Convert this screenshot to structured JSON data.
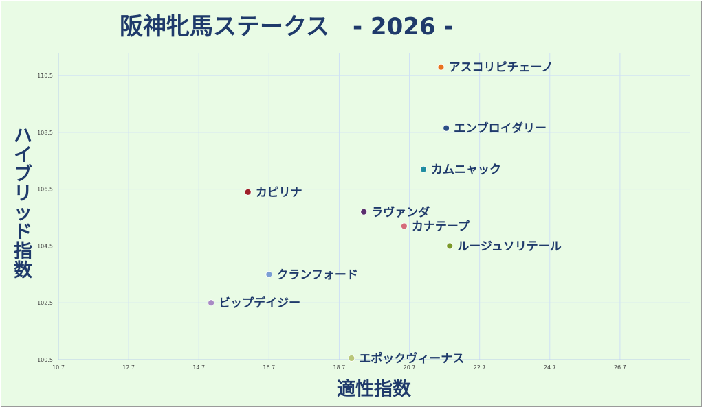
{
  "chart_data": {
    "type": "scatter",
    "title": "阪神牝馬ステークス　- 2026 -",
    "xlabel": "適性指数",
    "ylabel": "ハイブリッド指数",
    "xlim": [
      10.7,
      28.7
    ],
    "ylim": [
      100.5,
      111.3
    ],
    "xticks": [
      "10.7",
      "12.7",
      "14.7",
      "16.7",
      "18.7",
      "20.7",
      "22.7",
      "24.7",
      "26.7"
    ],
    "yticks": [
      "100.5",
      "102.5",
      "104.5",
      "106.5",
      "108.5",
      "110.5"
    ],
    "grid": true,
    "legend": "none",
    "points": [
      {
        "name": "アスコリピチェーノ",
        "x": 21.6,
        "y": 110.8,
        "color": "#e8731e"
      },
      {
        "name": "エンブロイダリー",
        "x": 21.75,
        "y": 108.65,
        "color": "#2b4f86"
      },
      {
        "name": "カムニャック",
        "x": 21.1,
        "y": 107.2,
        "color": "#1f8ea0"
      },
      {
        "name": "カピリナ",
        "x": 16.1,
        "y": 106.4,
        "color": "#9e1f28"
      },
      {
        "name": "ラヴァンダ",
        "x": 19.4,
        "y": 105.7,
        "color": "#5a2f6e"
      },
      {
        "name": "カナテープ",
        "x": 20.55,
        "y": 105.2,
        "color": "#d46b7a"
      },
      {
        "name": "ルージュソリテール",
        "x": 21.85,
        "y": 104.5,
        "color": "#7a9a2a"
      },
      {
        "name": "クランフォード",
        "x": 16.7,
        "y": 103.5,
        "color": "#7b9fd4"
      },
      {
        "name": "ビップデイジー",
        "x": 15.05,
        "y": 102.5,
        "color": "#a88bc4"
      },
      {
        "name": "エポックヴィーナス",
        "x": 19.05,
        "y": 100.55,
        "color": "#b9c77a"
      }
    ]
  }
}
